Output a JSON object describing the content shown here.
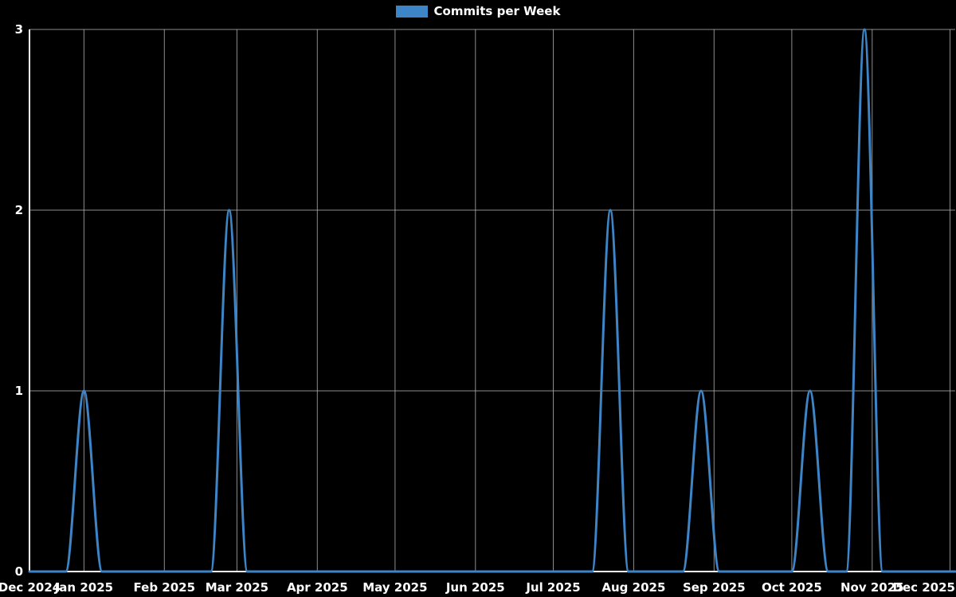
{
  "page": {
    "background": "#000000"
  },
  "legend": {
    "label": "Commits per Week",
    "swatch_color": "#3d85c6"
  },
  "chart_data": {
    "type": "line",
    "title": "Commits per Week",
    "legend_position": "top-center",
    "grid": true,
    "background": "#000000",
    "axis_color": "#ffffff",
    "grid_color": "#b0b0b0",
    "ylim": [
      0,
      3
    ],
    "y_ticks": [
      0,
      1,
      2,
      3
    ],
    "x_span_days": 357,
    "x_ticks": [
      {
        "label": "Dec 2024",
        "day": 0
      },
      {
        "label": "Jan 2025",
        "day": 21
      },
      {
        "label": "Feb 2025",
        "day": 52
      },
      {
        "label": "Mar 2025",
        "day": 80
      },
      {
        "label": "Apr 2025",
        "day": 111
      },
      {
        "label": "May 2025",
        "day": 141
      },
      {
        "label": "Jun 2025",
        "day": 172
      },
      {
        "label": "Jul 2025",
        "day": 202
      },
      {
        "label": "Aug 2025",
        "day": 233
      },
      {
        "label": "Sep 2025",
        "day": 264
      },
      {
        "label": "Oct 2025",
        "day": 294
      },
      {
        "label": "Nov 2025",
        "day": 325
      },
      {
        "label": "Dec 2025",
        "day": 355
      }
    ],
    "series": [
      {
        "name": "Commits per Week",
        "color": "#3d85c6",
        "line_width": 3,
        "x": [
          "2024-12-11",
          "2024-12-18",
          "2024-12-25",
          "2025-01-01",
          "2025-01-08",
          "2025-01-15",
          "2025-01-22",
          "2025-01-29",
          "2025-02-05",
          "2025-02-12",
          "2025-02-19",
          "2025-02-26",
          "2025-03-05",
          "2025-03-12",
          "2025-03-19",
          "2025-03-26",
          "2025-04-02",
          "2025-04-09",
          "2025-04-16",
          "2025-04-23",
          "2025-04-30",
          "2025-05-07",
          "2025-05-14",
          "2025-05-21",
          "2025-05-28",
          "2025-06-04",
          "2025-06-11",
          "2025-06-18",
          "2025-06-25",
          "2025-07-02",
          "2025-07-09",
          "2025-07-16",
          "2025-07-23",
          "2025-07-30",
          "2025-08-06",
          "2025-08-13",
          "2025-08-20",
          "2025-08-27",
          "2025-09-03",
          "2025-09-10",
          "2025-09-17",
          "2025-09-24",
          "2025-10-01",
          "2025-10-08",
          "2025-10-15",
          "2025-10-22",
          "2025-10-29",
          "2025-11-05",
          "2025-11-12",
          "2025-11-19",
          "2025-11-26",
          "2025-12-03"
        ],
        "values": [
          0,
          0,
          0,
          1,
          0,
          0,
          0,
          0,
          0,
          0,
          0,
          2,
          0,
          0,
          0,
          0,
          0,
          0,
          0,
          0,
          0,
          0,
          0,
          0,
          0,
          0,
          0,
          0,
          0,
          0,
          0,
          0,
          2,
          0,
          0,
          0,
          0,
          1,
          0,
          0,
          0,
          0,
          0,
          1,
          0,
          0,
          3,
          0,
          0,
          0,
          0,
          0
        ]
      }
    ]
  }
}
